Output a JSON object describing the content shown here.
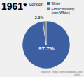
{
  "chart_data": {
    "type": "pie",
    "title": "1961*",
    "subtitle": "London",
    "categories": [
      "White",
      "Ethnic minority\n(non-White)"
    ],
    "values": [
      97.7,
      2.3
    ],
    "value_labels": [
      "97.7%",
      "2.3%"
    ],
    "colors": [
      "#3b5fa0",
      "#7a7a6a"
    ],
    "data_labels": true,
    "legend": "upper right",
    "annotations": [
      "Source: https://en.wikipedia.org/\nwiki/..."
    ]
  }
}
